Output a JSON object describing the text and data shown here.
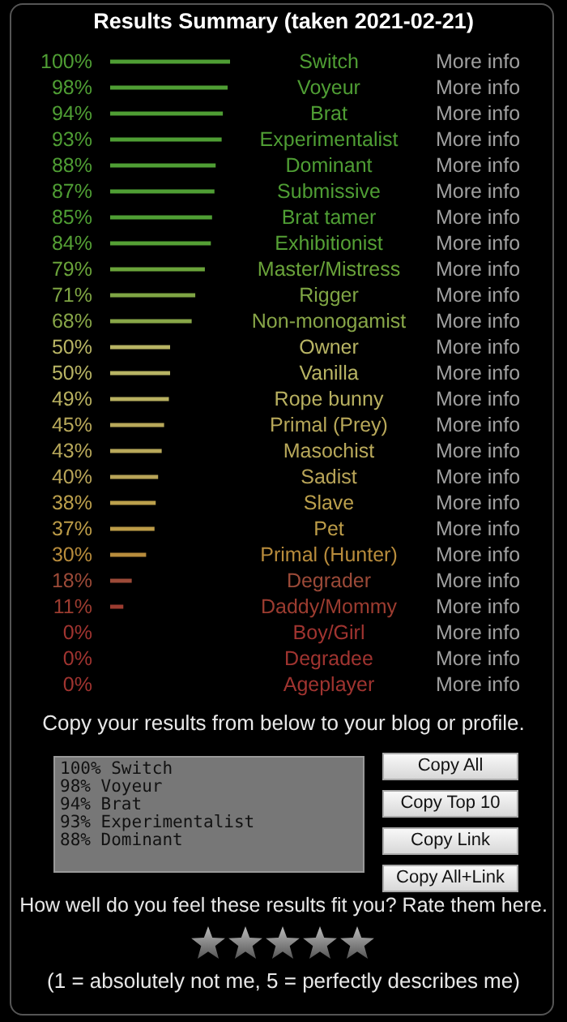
{
  "chart_data": {
    "type": "bar",
    "orientation": "horizontal",
    "title": "Results Summary (taken 2021-02-21)",
    "categories": [
      "Switch",
      "Voyeur",
      "Brat",
      "Experimentalist",
      "Dominant",
      "Submissive",
      "Brat tamer",
      "Exhibitionist",
      "Master/Mistress",
      "Rigger",
      "Non-monogamist",
      "Owner",
      "Vanilla",
      "Rope bunny",
      "Primal (Prey)",
      "Masochist",
      "Sadist",
      "Slave",
      "Pet",
      "Primal (Hunter)",
      "Degrader",
      "Daddy/Mommy",
      "Boy/Girl",
      "Degradee",
      "Ageplayer"
    ],
    "values": [
      100,
      98,
      94,
      93,
      88,
      87,
      85,
      84,
      79,
      71,
      68,
      50,
      50,
      49,
      45,
      43,
      40,
      38,
      37,
      30,
      18,
      11,
      0,
      0,
      0
    ],
    "value_labels": [
      "100%",
      "98%",
      "94%",
      "93%",
      "88%",
      "87%",
      "85%",
      "84%",
      "79%",
      "71%",
      "68%",
      "50%",
      "50%",
      "49%",
      "45%",
      "43%",
      "40%",
      "38%",
      "37%",
      "30%",
      "18%",
      "11%",
      "0%",
      "0%",
      "0%"
    ],
    "colors": [
      "#4f9e34",
      "#4f9e34",
      "#4f9e34",
      "#4f9e34",
      "#4f9e34",
      "#4f9e34",
      "#4f9e34",
      "#55a035",
      "#6aa33a",
      "#7fa544",
      "#88a648",
      "#b8b464",
      "#b8b464",
      "#b8b060",
      "#b8a85a",
      "#b8a85a",
      "#b8a458",
      "#bca04c",
      "#bc9c48",
      "#b88c3c",
      "#9c4a38",
      "#9c3c30",
      "#a03430",
      "#a03430",
      "#a03430"
    ],
    "annotations": [
      "More info",
      "More info",
      "More info",
      "More info",
      "More info",
      "More info",
      "More info",
      "More info",
      "More info",
      "More info",
      "More info",
      "More info",
      "More info",
      "More info",
      "More info",
      "More info",
      "More info",
      "More info",
      "More info",
      "More info",
      "More info",
      "More info",
      "More info",
      "More info",
      "More info",
      "Copy your results from below to your blog or profile.",
      "100% Switch",
      "98% Voyeur",
      "94% Brat",
      "93% Experimentalist",
      "88% Dominant",
      "Copy All",
      "Copy Top 10",
      "Copy Link",
      "Copy All+Link",
      "How well do you feel these results fit you? Rate them here.",
      "(1 = absolutely not me, 5 = perfectly describes me)"
    ]
  }
}
